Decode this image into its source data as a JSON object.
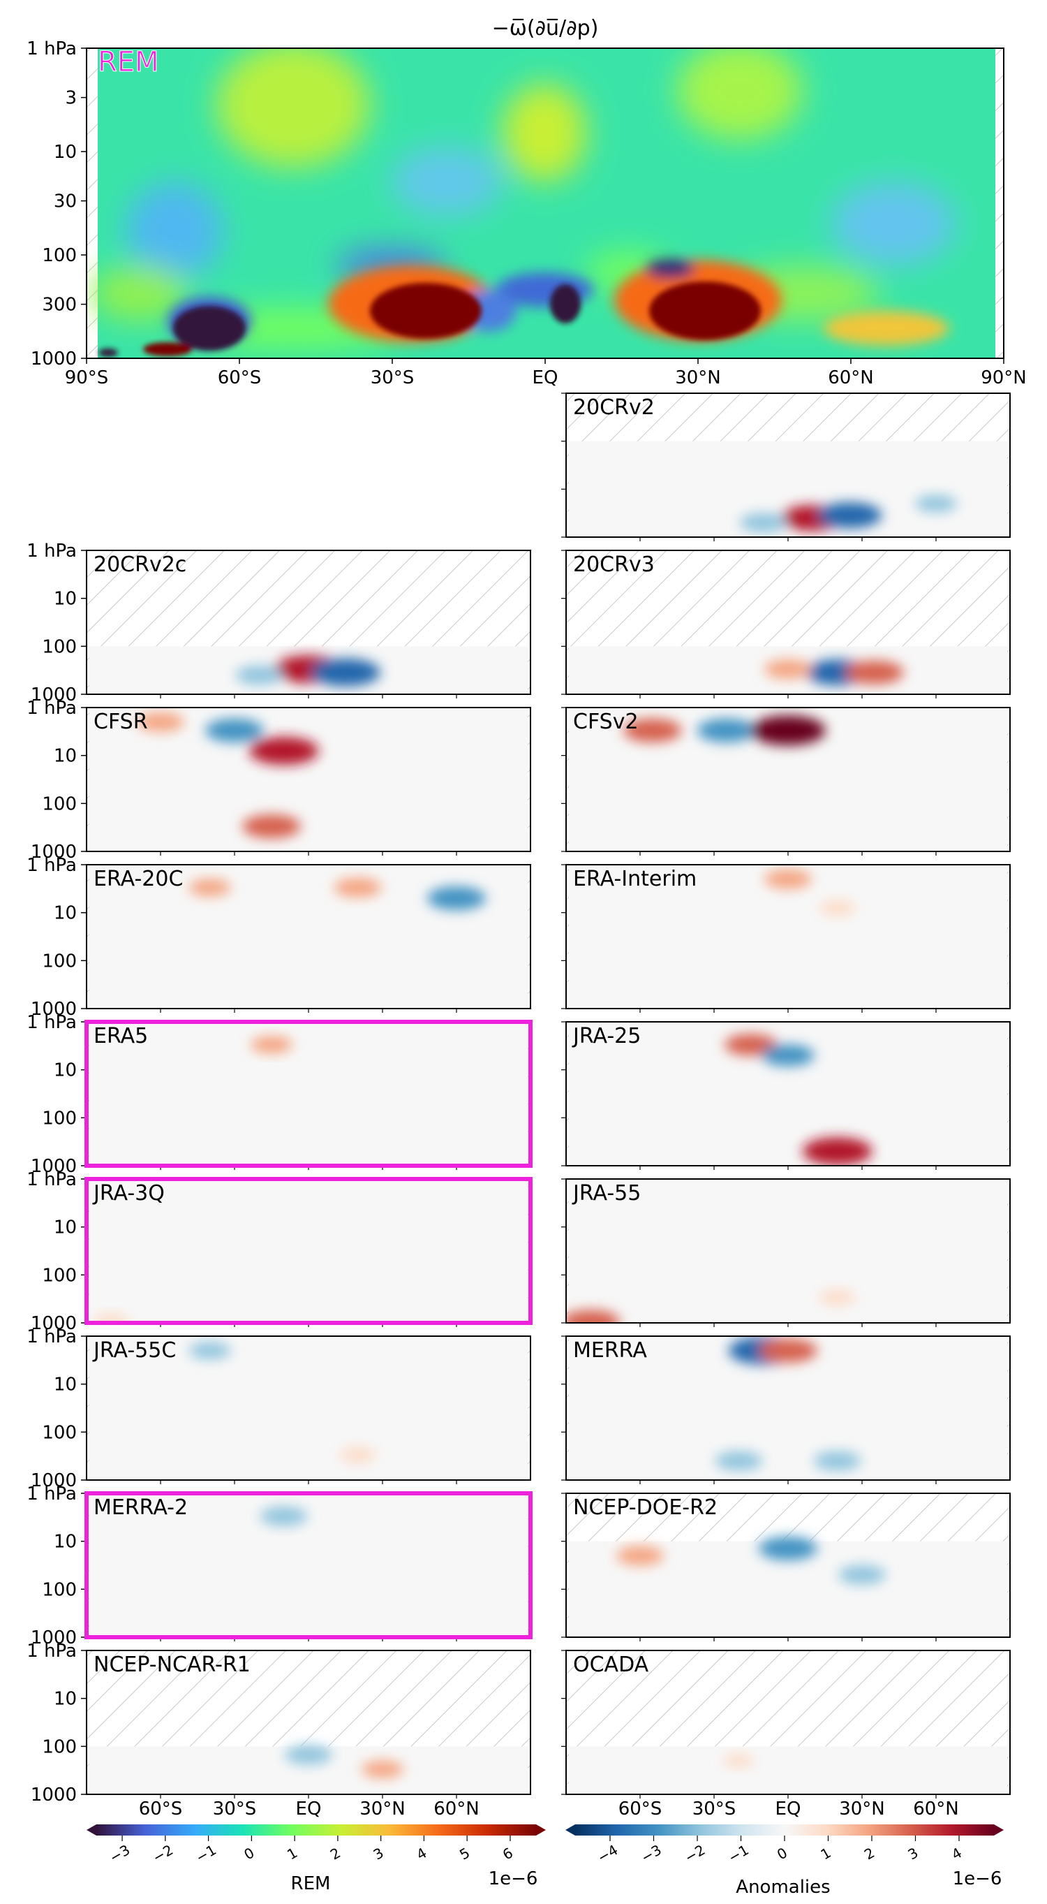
{
  "figure": {
    "title": "−ω̅(∂u̅/∂p)"
  },
  "axes_text": {
    "lat_ticks_main": [
      "90°S",
      "60°S",
      "30°S",
      "EQ",
      "30°N",
      "60°N",
      "90°N"
    ],
    "lat_ticks_bottom": [
      "60°S",
      "30°S",
      "EQ",
      "30°N",
      "60°N"
    ],
    "p_ticks_main": [
      "1 hPa",
      "3",
      "10",
      "30",
      "100",
      "300",
      "1000"
    ],
    "p_ticks_small": [
      "1 hPa",
      "10",
      "100",
      "1000"
    ]
  },
  "colorbars": {
    "rem": {
      "label": "REM",
      "exponent": "1e−6",
      "ticks": [
        "−3",
        "−2",
        "−1",
        "0",
        "1",
        "2",
        "3",
        "4",
        "5",
        "6"
      ]
    },
    "anom": {
      "label": "Anomalies",
      "exponent": "1e−6",
      "ticks": [
        "−4",
        "−3",
        "−2",
        "−1",
        "0",
        "1",
        "2",
        "3",
        "4"
      ]
    }
  },
  "colors": {
    "highlight": "#ee22dd",
    "rem_cmap": [
      "#30123b",
      "#4662d7",
      "#36aaf9",
      "#1ae4b6",
      "#72fe5e",
      "#c8ef34",
      "#faba39",
      "#f66b19",
      "#ca2a04",
      "#7a0403"
    ],
    "anom_cmap": [
      "#053061",
      "#2166ac",
      "#4393c3",
      "#92c5de",
      "#d1e5f0",
      "#f7f7f7",
      "#fddbc7",
      "#f4a582",
      "#d6604d",
      "#b2182b",
      "#67001f"
    ]
  },
  "chart_data": [
    {
      "type": "heatmap",
      "panel": "REM",
      "title": "−ω̅(∂u̅/∂p)",
      "x_range_deg": [
        -90,
        90
      ],
      "y_range_hPa": [
        1000,
        1
      ],
      "y_scale": "log",
      "colorbar": "REM",
      "features": [
        {
          "lat": -50,
          "p_hPa": 500,
          "value": -3.0
        },
        {
          "lat": -20,
          "p_hPa": 300,
          "value": 6.0
        },
        {
          "lat": 20,
          "p_hPa": 300,
          "value": 6.0
        },
        {
          "lat": 5,
          "p_hPa": 300,
          "value": -3.0
        },
        {
          "lat": -65,
          "p_hPa": 900,
          "value": 6.0
        },
        {
          "lat": 25,
          "p_hPa": 120,
          "value": -2.5
        },
        {
          "lat": -35,
          "p_hPa": 100,
          "value": -1.0
        },
        {
          "lat": -40,
          "p_hPa": 3,
          "value": 1.5
        },
        {
          "lat": 0,
          "p_hPa": 10,
          "value": 1.2
        }
      ]
    },
    {
      "type": "heatmap",
      "panel": "20CRv2",
      "highlighted": false,
      "data_top_hPa": 10,
      "features": [
        {
          "lat": 10,
          "p_hPa": 400,
          "value": 3.5
        },
        {
          "lat": 25,
          "p_hPa": 350,
          "value": -3.5
        },
        {
          "lat": -10,
          "p_hPa": 500,
          "value": -2
        },
        {
          "lat": 60,
          "p_hPa": 200,
          "value": -1.5
        }
      ]
    },
    {
      "type": "heatmap",
      "panel": "20CRv2c",
      "highlighted": false,
      "data_top_hPa": 100,
      "features": [
        {
          "lat": 0,
          "p_hPa": 300,
          "value": 4
        },
        {
          "lat": 15,
          "p_hPa": 350,
          "value": -4
        },
        {
          "lat": -20,
          "p_hPa": 400,
          "value": -2
        }
      ]
    },
    {
      "type": "heatmap",
      "panel": "20CRv3",
      "highlighted": false,
      "data_top_hPa": 100,
      "features": [
        {
          "lat": 20,
          "p_hPa": 350,
          "value": -3.5
        },
        {
          "lat": 35,
          "p_hPa": 350,
          "value": 3
        },
        {
          "lat": 0,
          "p_hPa": 300,
          "value": 2
        }
      ]
    },
    {
      "type": "heatmap",
      "panel": "CFSR",
      "highlighted": false,
      "data_top_hPa": 1,
      "features": [
        {
          "lat": -30,
          "p_hPa": 3,
          "value": -3
        },
        {
          "lat": -10,
          "p_hPa": 8,
          "value": 4
        },
        {
          "lat": -60,
          "p_hPa": 2,
          "value": 2
        },
        {
          "lat": -15,
          "p_hPa": 300,
          "value": 3
        }
      ]
    },
    {
      "type": "heatmap",
      "panel": "CFSv2",
      "highlighted": false,
      "data_top_hPa": 1,
      "features": [
        {
          "lat": -55,
          "p_hPa": 3,
          "value": 3
        },
        {
          "lat": -25,
          "p_hPa": 3,
          "value": -3
        },
        {
          "lat": 0,
          "p_hPa": 3,
          "value": 4.5
        }
      ]
    },
    {
      "type": "heatmap",
      "panel": "ERA-20C",
      "highlighted": false,
      "data_top_hPa": 1,
      "features": [
        {
          "lat": 60,
          "p_hPa": 5,
          "value": -3
        },
        {
          "lat": 20,
          "p_hPa": 3,
          "value": 2
        },
        {
          "lat": -40,
          "p_hPa": 3,
          "value": 1.5
        }
      ]
    },
    {
      "type": "heatmap",
      "panel": "ERA-Interim",
      "highlighted": false,
      "data_top_hPa": 1,
      "features": [
        {
          "lat": 0,
          "p_hPa": 2,
          "value": 2
        },
        {
          "lat": 20,
          "p_hPa": 8,
          "value": 1
        }
      ]
    },
    {
      "type": "heatmap",
      "panel": "ERA5",
      "highlighted": true,
      "data_top_hPa": 1,
      "features": [
        {
          "lat": -15,
          "p_hPa": 3,
          "value": 1.5
        }
      ]
    },
    {
      "type": "heatmap",
      "panel": "JRA-25",
      "highlighted": false,
      "data_top_hPa": 1,
      "features": [
        {
          "lat": -15,
          "p_hPa": 3,
          "value": 2.5
        },
        {
          "lat": 0,
          "p_hPa": 5,
          "value": -2.5
        },
        {
          "lat": 20,
          "p_hPa": 500,
          "value": 4
        }
      ]
    },
    {
      "type": "heatmap",
      "panel": "JRA-3Q",
      "highlighted": true,
      "data_top_hPa": 1,
      "features": [
        {
          "lat": -80,
          "p_hPa": 950,
          "value": 1
        }
      ]
    },
    {
      "type": "heatmap",
      "panel": "JRA-55",
      "highlighted": false,
      "data_top_hPa": 1,
      "features": [
        {
          "lat": 20,
          "p_hPa": 300,
          "value": 1
        },
        {
          "lat": -80,
          "p_hPa": 950,
          "value": 3
        }
      ]
    },
    {
      "type": "heatmap",
      "panel": "JRA-55C",
      "highlighted": false,
      "data_top_hPa": 1,
      "features": [
        {
          "lat": -40,
          "p_hPa": 2,
          "value": -1.5
        },
        {
          "lat": 20,
          "p_hPa": 300,
          "value": 1
        }
      ]
    },
    {
      "type": "heatmap",
      "panel": "MERRA",
      "highlighted": false,
      "data_top_hPa": 1,
      "features": [
        {
          "lat": -10,
          "p_hPa": 2,
          "value": -4
        },
        {
          "lat": 0,
          "p_hPa": 2,
          "value": 3
        },
        {
          "lat": -20,
          "p_hPa": 400,
          "value": -2
        },
        {
          "lat": 20,
          "p_hPa": 400,
          "value": -2
        }
      ]
    },
    {
      "type": "heatmap",
      "panel": "MERRA-2",
      "highlighted": true,
      "data_top_hPa": 1,
      "features": [
        {
          "lat": -10,
          "p_hPa": 3,
          "value": -2
        }
      ]
    },
    {
      "type": "heatmap",
      "panel": "NCEP-DOE-R2",
      "highlighted": false,
      "data_top_hPa": 10,
      "features": [
        {
          "lat": 0,
          "p_hPa": 12,
          "value": -3
        },
        {
          "lat": -60,
          "p_hPa": 20,
          "value": 2
        },
        {
          "lat": 30,
          "p_hPa": 50,
          "value": -2
        }
      ]
    },
    {
      "type": "heatmap",
      "panel": "NCEP-NCAR-R1",
      "highlighted": false,
      "data_top_hPa": 100,
      "features": [
        {
          "lat": 0,
          "p_hPa": 150,
          "value": -2
        },
        {
          "lat": 30,
          "p_hPa": 300,
          "value": 1.5
        }
      ]
    },
    {
      "type": "heatmap",
      "panel": "OCADA",
      "highlighted": false,
      "data_top_hPa": 100,
      "features": [
        {
          "lat": -20,
          "p_hPa": 200,
          "value": 0.5
        }
      ]
    }
  ]
}
